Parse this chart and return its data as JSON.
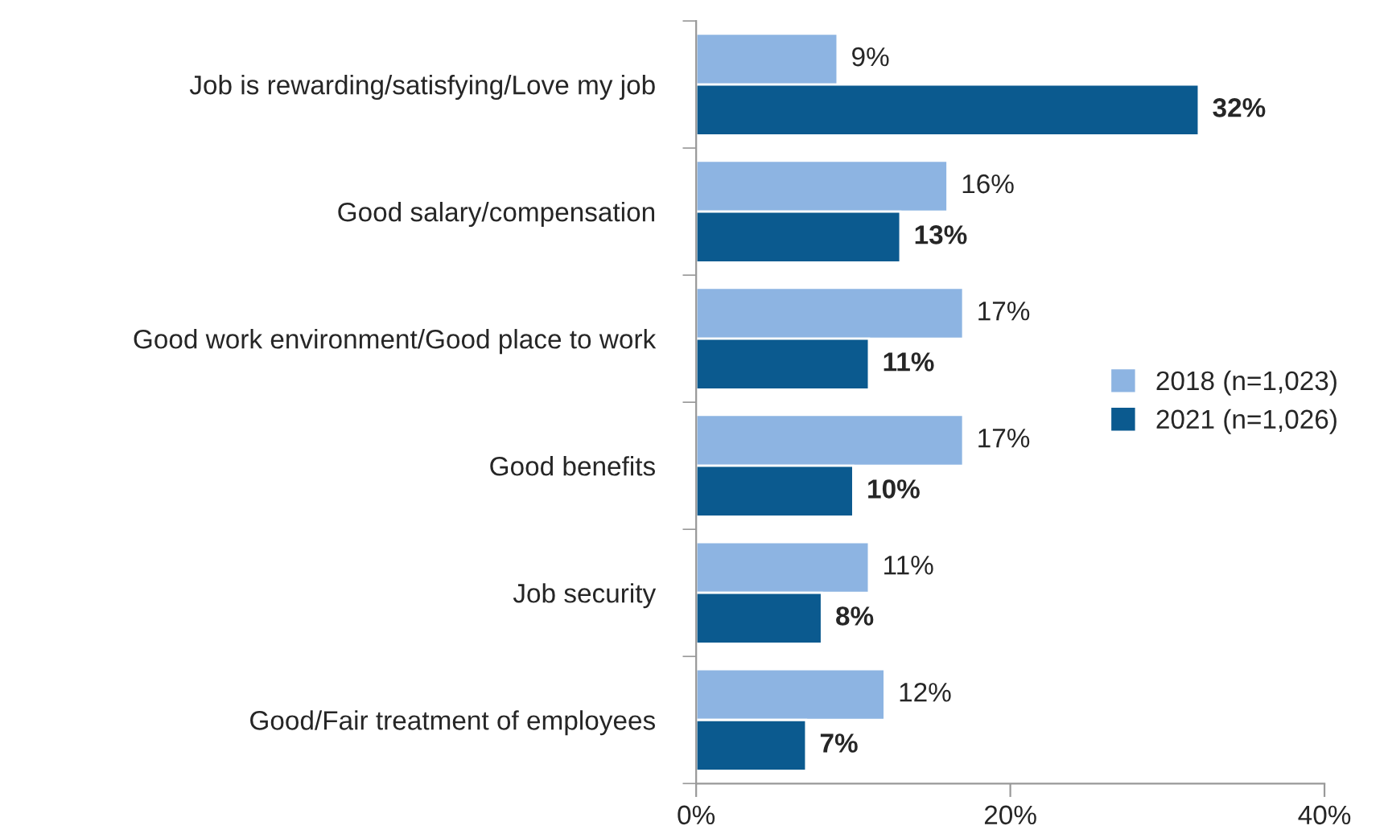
{
  "chart_data": {
    "type": "bar",
    "orientation": "horizontal",
    "categories": [
      "Job is rewarding/satisfying/Love my job",
      "Good salary/compensation",
      "Good work environment/Good place to work",
      "Good benefits",
      "Job security",
      "Good/Fair treatment of employees"
    ],
    "series": [
      {
        "name": "2018 (n=1,023)",
        "color": "#8db4e2",
        "values": [
          9,
          16,
          17,
          17,
          11,
          12
        ],
        "value_labels": [
          "9%",
          "16%",
          "17%",
          "17%",
          "11%",
          "12%"
        ]
      },
      {
        "name": "2021 (n=1,026)",
        "color": "#0b5a8f",
        "values": [
          32,
          13,
          11,
          10,
          8,
          7
        ],
        "value_labels": [
          "32%",
          "13%",
          "11%",
          "10%",
          "8%",
          "7%"
        ]
      }
    ],
    "xlim": [
      0,
      40
    ],
    "xticks": [
      {
        "value": 0,
        "label": "0%"
      },
      {
        "value": 20,
        "label": "20%"
      },
      {
        "value": 40,
        "label": "40%"
      }
    ],
    "grid": false,
    "legend": "right"
  }
}
